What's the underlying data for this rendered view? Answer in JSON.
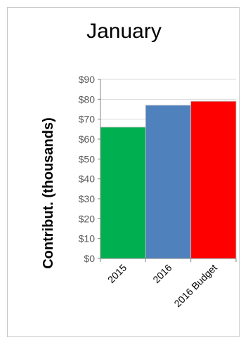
{
  "chart_data": {
    "type": "bar",
    "title": "January",
    "ylabel": "Contribut. (thousands)",
    "xlabel": "",
    "categories": [
      "2015",
      "2016",
      "2016 Budget"
    ],
    "values": [
      66,
      77,
      79
    ],
    "ylim": [
      0,
      90
    ],
    "yticks": [
      "$0",
      "$10",
      "$20",
      "$30",
      "$40",
      "$50",
      "$60",
      "$70",
      "$80",
      "$90"
    ],
    "colors": [
      "#00b050",
      "#4f81bd",
      "#ff0000"
    ],
    "grid": true,
    "legend": "none"
  }
}
